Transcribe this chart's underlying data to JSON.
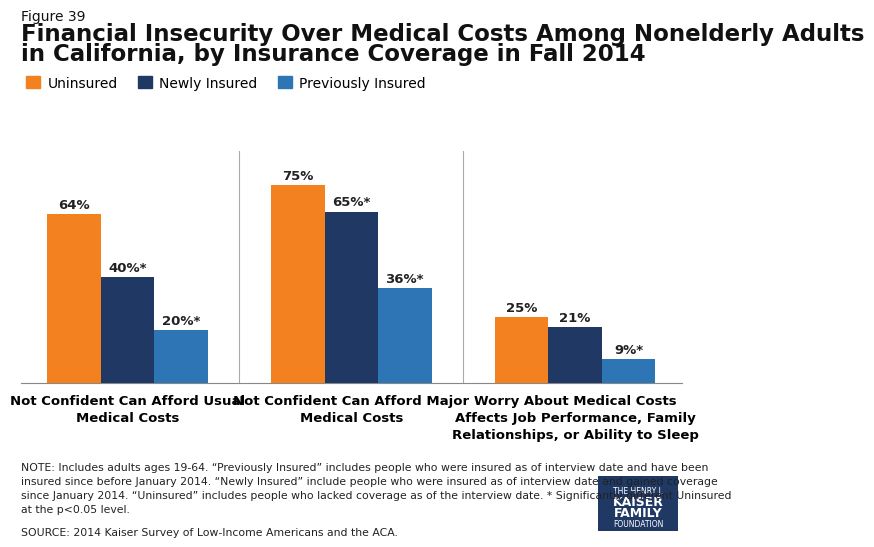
{
  "figure_label": "Figure 39",
  "title_line1": "Financial Insecurity Over Medical Costs Among Nonelderly Adults",
  "title_line2": "in California, by Insurance Coverage in Fall 2014",
  "categories": [
    "Not Confident Can Afford Usual\nMedical Costs",
    "Not Confident Can Afford Major\nMedical Costs",
    "Worry About Medical Costs\nAffects Job Performance, Family\nRelationships, or Ability to Sleep"
  ],
  "series": [
    {
      "name": "Uninsured",
      "color": "#F4811F",
      "values": [
        64,
        75,
        25
      ]
    },
    {
      "name": "Newly Insured",
      "color": "#1F3864",
      "values": [
        40,
        65,
        21
      ]
    },
    {
      "name": "Previously Insured",
      "color": "#2E75B6",
      "values": [
        20,
        36,
        9
      ]
    }
  ],
  "bar_labels": [
    [
      "64%",
      "40%*",
      "20%*"
    ],
    [
      "75%",
      "65%*",
      "36%*"
    ],
    [
      "25%",
      "21%",
      "9%*"
    ]
  ],
  "ylim": [
    0,
    88
  ],
  "bar_width": 0.55,
  "group_positions": [
    1.0,
    3.3,
    5.6
  ],
  "note_text": "NOTE: Includes adults ages 19-64. “Previously Insured” includes people who were insured as of interview date and have been\ninsured since before January 2014. “Newly Insured” include people who were insured as of interview date and gained coverage\nsince January 2014. “Uninsured” includes people who lacked coverage as of the interview date. * Significantly different Uninsured\nat the p<0.05 level.",
  "source_text": "SOURCE: 2014 Kaiser Survey of Low-Income Americans and the ACA.",
  "background_color": "#FFFFFF",
  "label_fontsize": 9.5,
  "cat_label_fontsize": 9.5,
  "title_fontsize": 16.5,
  "fig_label_fontsize": 10,
  "legend_fontsize": 10,
  "note_fontsize": 7.8,
  "separator_color": "#AAAAAA",
  "spine_color": "#888888"
}
